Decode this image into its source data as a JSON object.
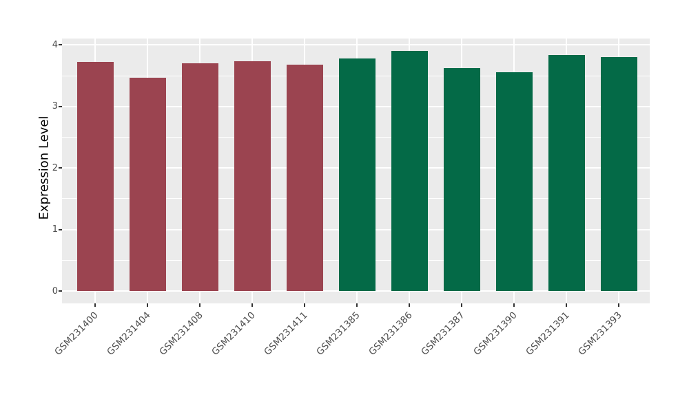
{
  "chart_data": {
    "type": "bar",
    "title": "",
    "xlabel": "",
    "ylabel": "Expression Level",
    "categories": [
      "GSM231400",
      "GSM231404",
      "GSM231408",
      "GSM231410",
      "GSM231411",
      "GSM231385",
      "GSM231386",
      "GSM231387",
      "GSM231390",
      "GSM231391",
      "GSM231393"
    ],
    "values": [
      3.72,
      3.47,
      3.7,
      3.74,
      3.68,
      3.78,
      3.9,
      3.62,
      3.56,
      3.84,
      3.8
    ],
    "bar_colors": [
      "#9B4450",
      "#9B4450",
      "#9B4450",
      "#9B4450",
      "#9B4450",
      "#046A47",
      "#046A47",
      "#046A47",
      "#046A47",
      "#046A47",
      "#046A47"
    ],
    "groups": [
      {
        "name": "group-red",
        "color": "#9B4450",
        "categories": [
          "GSM231400",
          "GSM231404",
          "GSM231408",
          "GSM231410",
          "GSM231411"
        ]
      },
      {
        "name": "group-green",
        "color": "#046A47",
        "categories": [
          "GSM231385",
          "GSM231386",
          "GSM231387",
          "GSM231390",
          "GSM231391",
          "GSM231393"
        ]
      }
    ],
    "yticks": [
      0,
      1,
      2,
      3,
      4
    ],
    "ytick_labels": [
      "0",
      "1",
      "2",
      "3",
      "4"
    ],
    "minor_yticks": [
      0.5,
      1.5,
      2.5,
      3.5
    ],
    "ylim": [
      -0.205,
      4.1
    ],
    "grid": true,
    "legend": false,
    "panel_bg": "#EBEBEB",
    "grid_color": "#FFFFFF",
    "axis_text_color": "#4D4D4D"
  }
}
